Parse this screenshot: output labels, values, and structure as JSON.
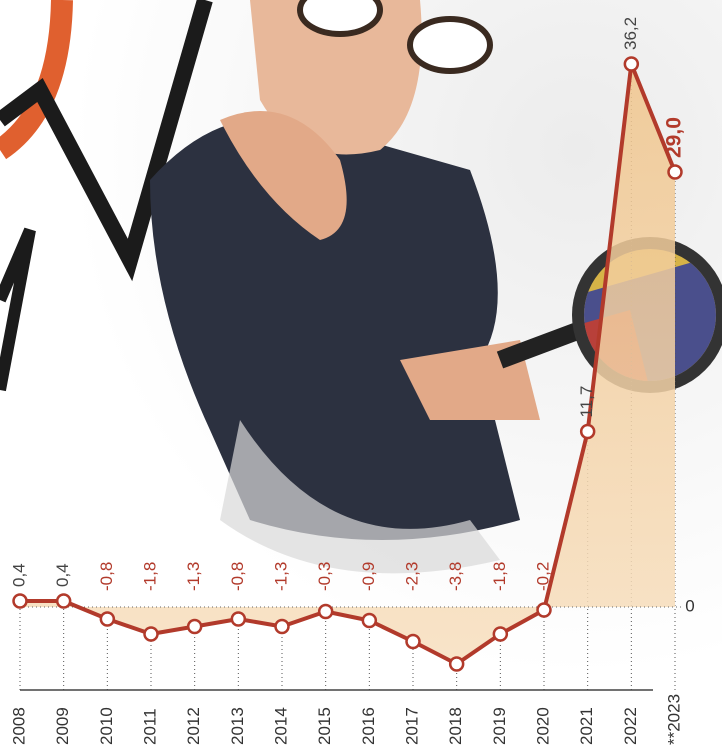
{
  "chart_data": {
    "type": "line",
    "categories": [
      "2008",
      "2009",
      "2010",
      "2011",
      "2012",
      "2013",
      "2014",
      "2015",
      "2016",
      "2017",
      "2018",
      "2019",
      "2020",
      "2021",
      "2022",
      "**2023"
    ],
    "values": [
      0.4,
      0.4,
      -0.8,
      -1.8,
      -1.3,
      -0.8,
      -1.3,
      -0.3,
      -0.9,
      -2.3,
      -3.8,
      -1.8,
      -0.2,
      11.7,
      36.2,
      29.0
    ],
    "value_labels": [
      "0,4",
      "0,4",
      "-0,8",
      "-1,8",
      "-1,3",
      "-0,8",
      "-1,3",
      "-0,3",
      "-0,9",
      "-2,3",
      "-3,8",
      "-1,8",
      "-0,2",
      "11,7",
      "36,2",
      "29,0"
    ],
    "color": "#b23a2b",
    "ylim": [
      -6,
      40
    ],
    "yticks": [
      0
    ]
  }
}
